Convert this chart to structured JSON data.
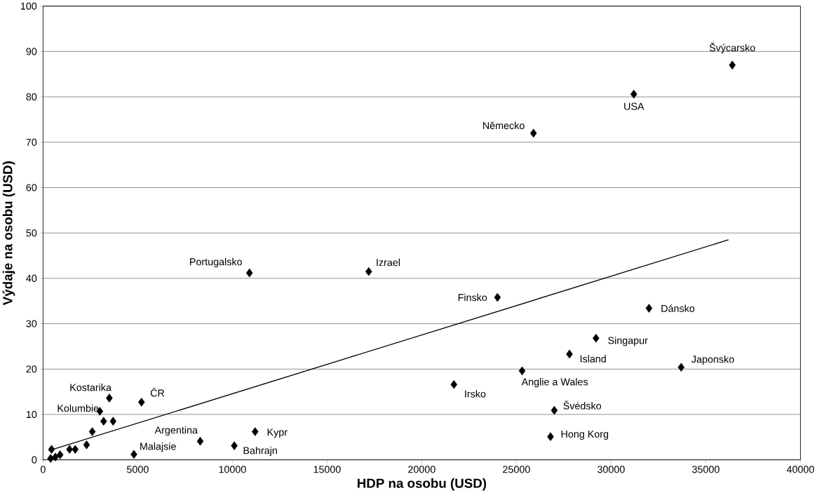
{
  "chart_data": {
    "type": "scatter",
    "xlabel": "HDP na osobu (USD)",
    "ylabel": "Výdaje na osobu (USD)",
    "xlim": [
      0,
      40000
    ],
    "ylim": [
      0,
      100
    ],
    "xticks": [
      0,
      5000,
      10000,
      15000,
      20000,
      25000,
      30000,
      35000,
      40000
    ],
    "yticks": [
      0,
      10,
      20,
      30,
      40,
      50,
      60,
      70,
      80,
      90,
      100
    ],
    "grid": "y",
    "marker": "diamond",
    "series": [
      {
        "color": "#000000",
        "x": [
          36400,
          31200,
          25900,
          10900,
          17200,
          24000,
          32000,
          29200,
          27800,
          33700,
          25300,
          21700,
          27000,
          26800,
          3500,
          5200,
          3000,
          3200,
          3700,
          2600,
          2300,
          4800,
          8300,
          10100,
          11200,
          450,
          400,
          900,
          1400,
          1700,
          650
        ],
        "values": [
          87,
          80.6,
          72,
          41.2,
          41.5,
          35.8,
          33.4,
          26.8,
          23.3,
          20.4,
          19.6,
          16.6,
          10.9,
          5.1,
          13.6,
          12.7,
          10.7,
          8.5,
          8.5,
          6.2,
          3.3,
          1.2,
          4.1,
          3.1,
          6.2,
          2.3,
          0.3,
          1.1,
          2.3,
          2.3,
          0.6
        ]
      },
      {
        "type": "line",
        "color": "#000000",
        "marker": "none",
        "x": [
          300,
          36200
        ],
        "values": [
          2.0,
          48.5
        ]
      }
    ],
    "annotations": [
      {
        "text": "Švýcarsko",
        "x": 36400,
        "y": 87
      },
      {
        "text": "USA",
        "x": 31200,
        "y": 80.6
      },
      {
        "text": "Německo",
        "x": 25900,
        "y": 72
      },
      {
        "text": "Portugalsko",
        "x": 10900,
        "y": 41.2
      },
      {
        "text": "Izrael",
        "x": 17200,
        "y": 41.5
      },
      {
        "text": "Finsko",
        "x": 24000,
        "y": 35.8
      },
      {
        "text": "Dánsko",
        "x": 32000,
        "y": 33.4
      },
      {
        "text": "Singapur",
        "x": 29200,
        "y": 26.8
      },
      {
        "text": "Island",
        "x": 27800,
        "y": 23.3
      },
      {
        "text": "Japonsko",
        "x": 33700,
        "y": 20.4
      },
      {
        "text": "Anglie a Wales",
        "x": 25300,
        "y": 19.6
      },
      {
        "text": "Irsko",
        "x": 21700,
        "y": 16.6
      },
      {
        "text": "Švédsko",
        "x": 27000,
        "y": 10.9
      },
      {
        "text": "Hong Korg",
        "x": 26800,
        "y": 5.1
      },
      {
        "text": "Kostarika",
        "x": 3500,
        "y": 13.6
      },
      {
        "text": "ČR",
        "x": 5200,
        "y": 12.7
      },
      {
        "text": "Kolumbie",
        "x": 3000,
        "y": 10.7
      },
      {
        "text": "Argentina",
        "x": 8300,
        "y": 4.1
      },
      {
        "text": "Malajsie",
        "x": 4800,
        "y": 1.2
      },
      {
        "text": "Kypr",
        "x": 11200,
        "y": 6.2
      },
      {
        "text": "Bahrajn",
        "x": 10100,
        "y": 3.1
      }
    ]
  }
}
